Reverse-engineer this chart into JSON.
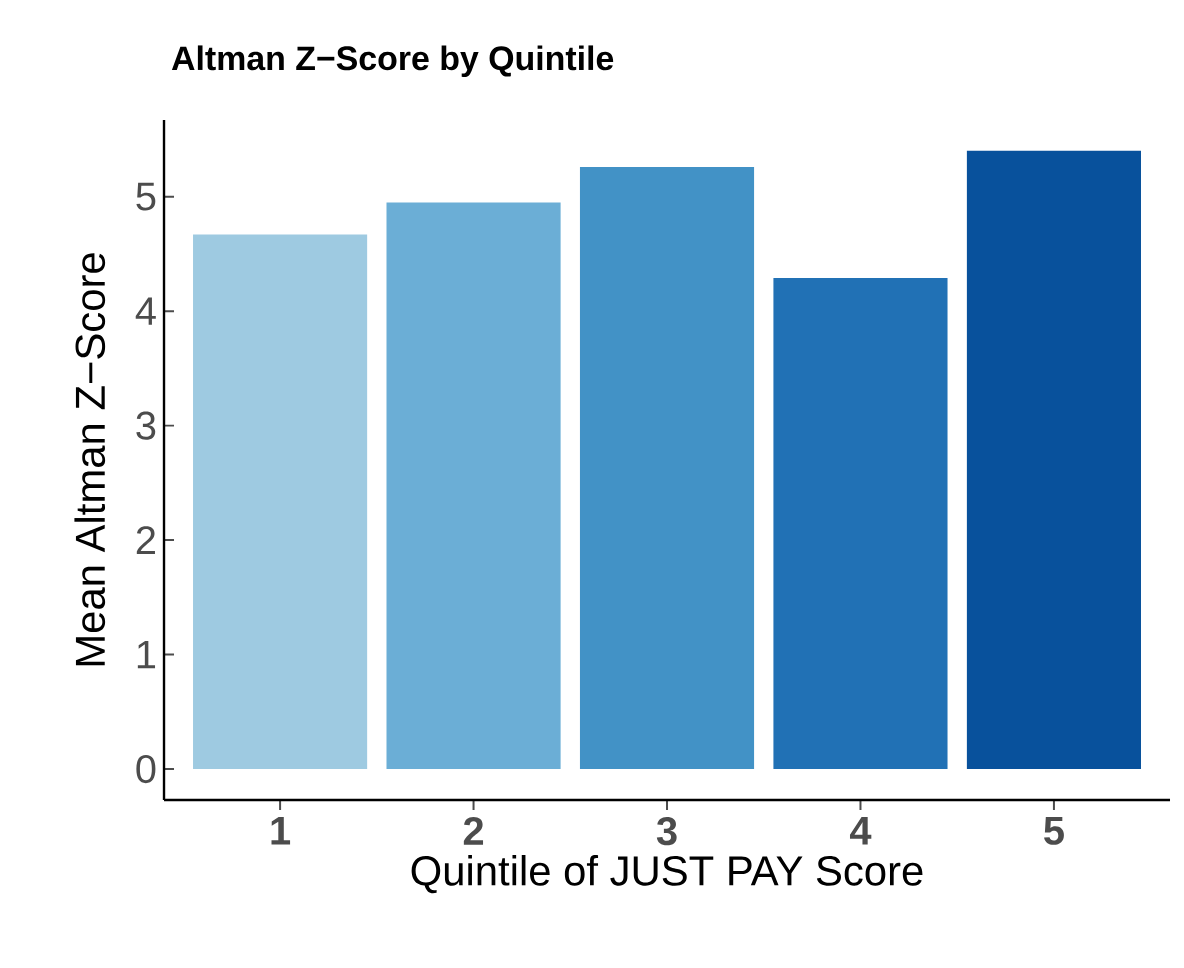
{
  "chart_data": {
    "type": "bar",
    "title": "Altman Z−Score by Quintile",
    "xlabel": "Quintile of JUST PAY Score",
    "ylabel": "Mean Altman Z−Score",
    "categories": [
      "1",
      "2",
      "3",
      "4",
      "5"
    ],
    "values": [
      4.67,
      4.95,
      5.26,
      4.29,
      5.4
    ],
    "colors": [
      "#9ecae1",
      "#6baed6",
      "#4292c6",
      "#2171b5",
      "#08519c"
    ],
    "ylim": [
      -0.27,
      5.67
    ],
    "yticks": [
      0,
      1,
      2,
      3,
      4,
      5
    ],
    "grid": false
  }
}
